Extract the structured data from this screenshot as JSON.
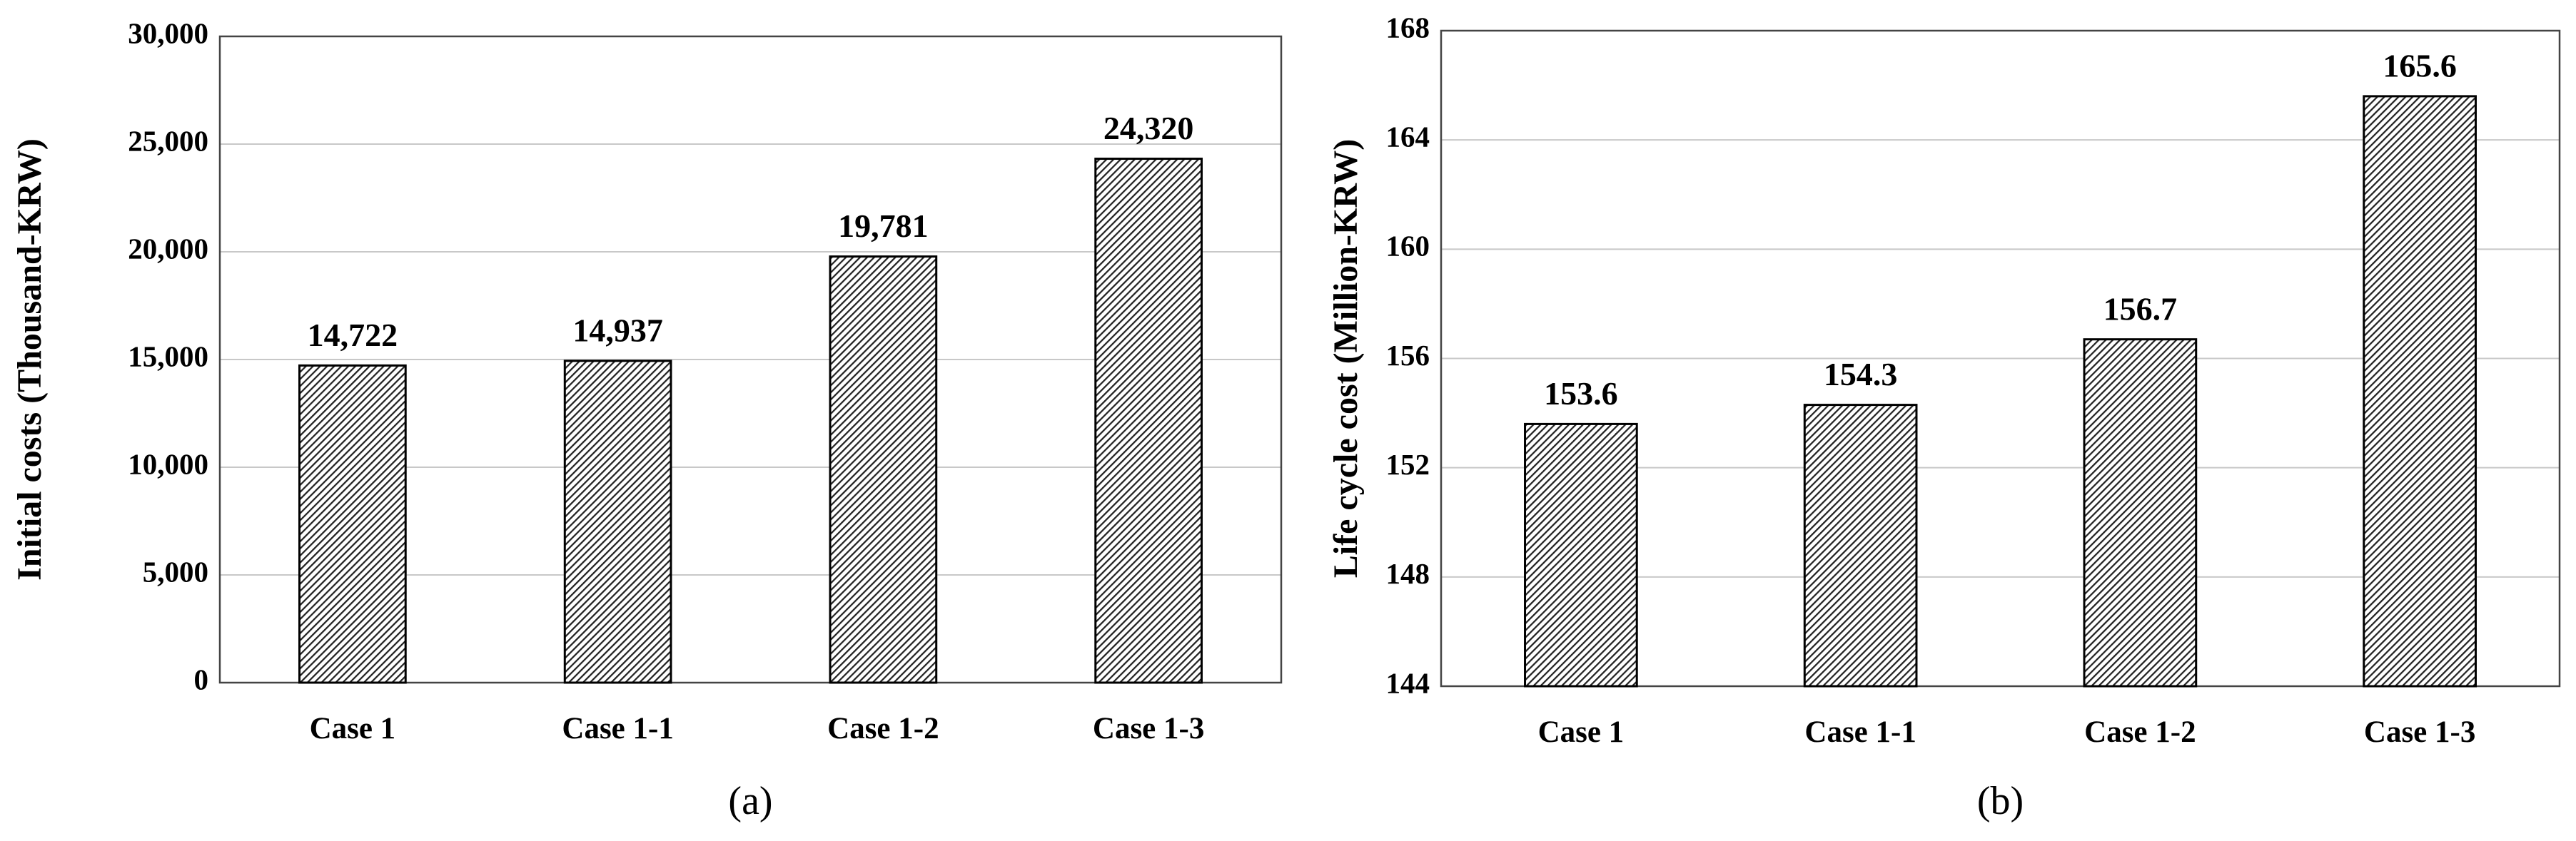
{
  "chart_data": [
    {
      "type": "bar",
      "ylabel": "Initial costs (Thousand-KRW)",
      "caption": "(a)",
      "categories": [
        "Case 1",
        "Case 1-1",
        "Case 1-2",
        "Case 1-3"
      ],
      "values": [
        14722,
        14937,
        19781,
        24320
      ],
      "value_labels": [
        "14,722",
        "14,937",
        "19,781",
        "24,320"
      ],
      "color": "#222222",
      "hatch": true,
      "ylim": [
        0,
        30000
      ],
      "yticks": [
        0,
        {
          "value": 5000,
          "label": "5,000"
        },
        {
          "value": 10000,
          "label": "10,000"
        },
        {
          "value": 15000,
          "label": "15,000"
        },
        {
          "value": 20000,
          "label": "20,000"
        },
        {
          "value": 25000,
          "label": "25,000"
        },
        {
          "value": 30000,
          "label": "30,000"
        }
      ],
      "grid": true
    },
    {
      "type": "bar",
      "ylabel": "Life cycle cost (Million-KRW)",
      "caption": "(b)",
      "categories": [
        "Case 1",
        "Case 1-1",
        "Case 1-2",
        "Case 1-3"
      ],
      "values": [
        153.6,
        154.3,
        156.7,
        165.6
      ],
      "color": "#222222",
      "hatch": true,
      "ylim": [
        144,
        168
      ],
      "yticks": [
        144,
        148,
        152,
        156,
        160,
        164,
        168
      ],
      "grid": true
    }
  ]
}
